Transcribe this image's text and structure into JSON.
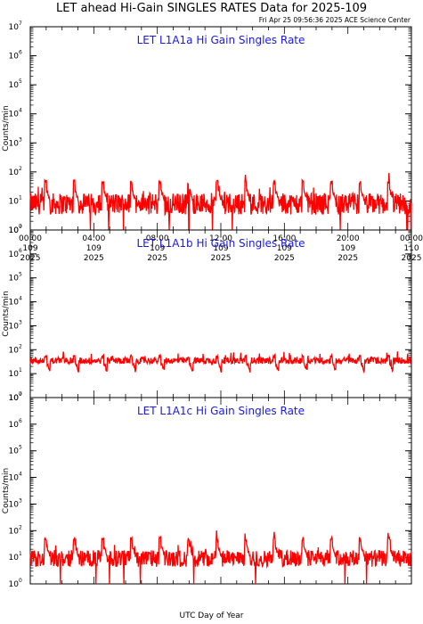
{
  "title": "LET ahead Hi-Gain SINGLES RATES Data for 2025-109",
  "timestamp": "Fri Apr 25 09:56:36 2025 ACE Science Center",
  "xlabel": "UTC Day of Year",
  "line_color": "#ff0000",
  "title_color": "#1a1ae0",
  "chart_data": [
    {
      "type": "line",
      "title": "LET L1A1a Hi Gain Singles Rate",
      "ylabel": "Counts/min",
      "yscale": "log",
      "ylim": [
        1,
        10000000
      ],
      "xlim_hours": [
        0,
        24
      ],
      "x_ticks": [
        {
          "time": "00:00",
          "day": "109",
          "year": "2025"
        },
        {
          "time": "04:00",
          "day": "109",
          "year": "2025"
        },
        {
          "time": "08:00",
          "day": "109",
          "year": "2025"
        },
        {
          "time": "12:00",
          "day": "109",
          "year": "2025"
        },
        {
          "time": "16:00",
          "day": "109",
          "year": "2025"
        },
        {
          "time": "20:00",
          "day": "109",
          "year": "2025"
        },
        {
          "time": "00:00",
          "day": "110",
          "year": "2025"
        }
      ],
      "series_summary": {
        "baseline": 8,
        "noise_low": 3,
        "noise_high": 20,
        "spike_peak": 50,
        "spike_interval_hours": 1.8,
        "dips_to_floor": true
      }
    },
    {
      "type": "line",
      "title": "LET L1A1b Hi Gain Singles Rate",
      "ylabel": "Counts/min",
      "yscale": "log",
      "ylim": [
        1,
        10000000
      ],
      "xlim_hours": [
        0,
        24
      ],
      "series_summary": {
        "baseline": 35,
        "noise_low": 25,
        "noise_high": 50,
        "spike_peak": 60,
        "spike_interval_hours": 1.8,
        "dips_to_floor": false
      }
    },
    {
      "type": "line",
      "title": "LET L1A1c Hi Gain Singles Rate",
      "ylabel": "Counts/min",
      "yscale": "log",
      "ylim": [
        1,
        10000000
      ],
      "xlim_hours": [
        0,
        24
      ],
      "series_summary": {
        "baseline": 9,
        "noise_low": 4,
        "noise_high": 20,
        "spike_peak": 55,
        "spike_interval_hours": 1.8,
        "dips_to_floor": true
      }
    }
  ]
}
